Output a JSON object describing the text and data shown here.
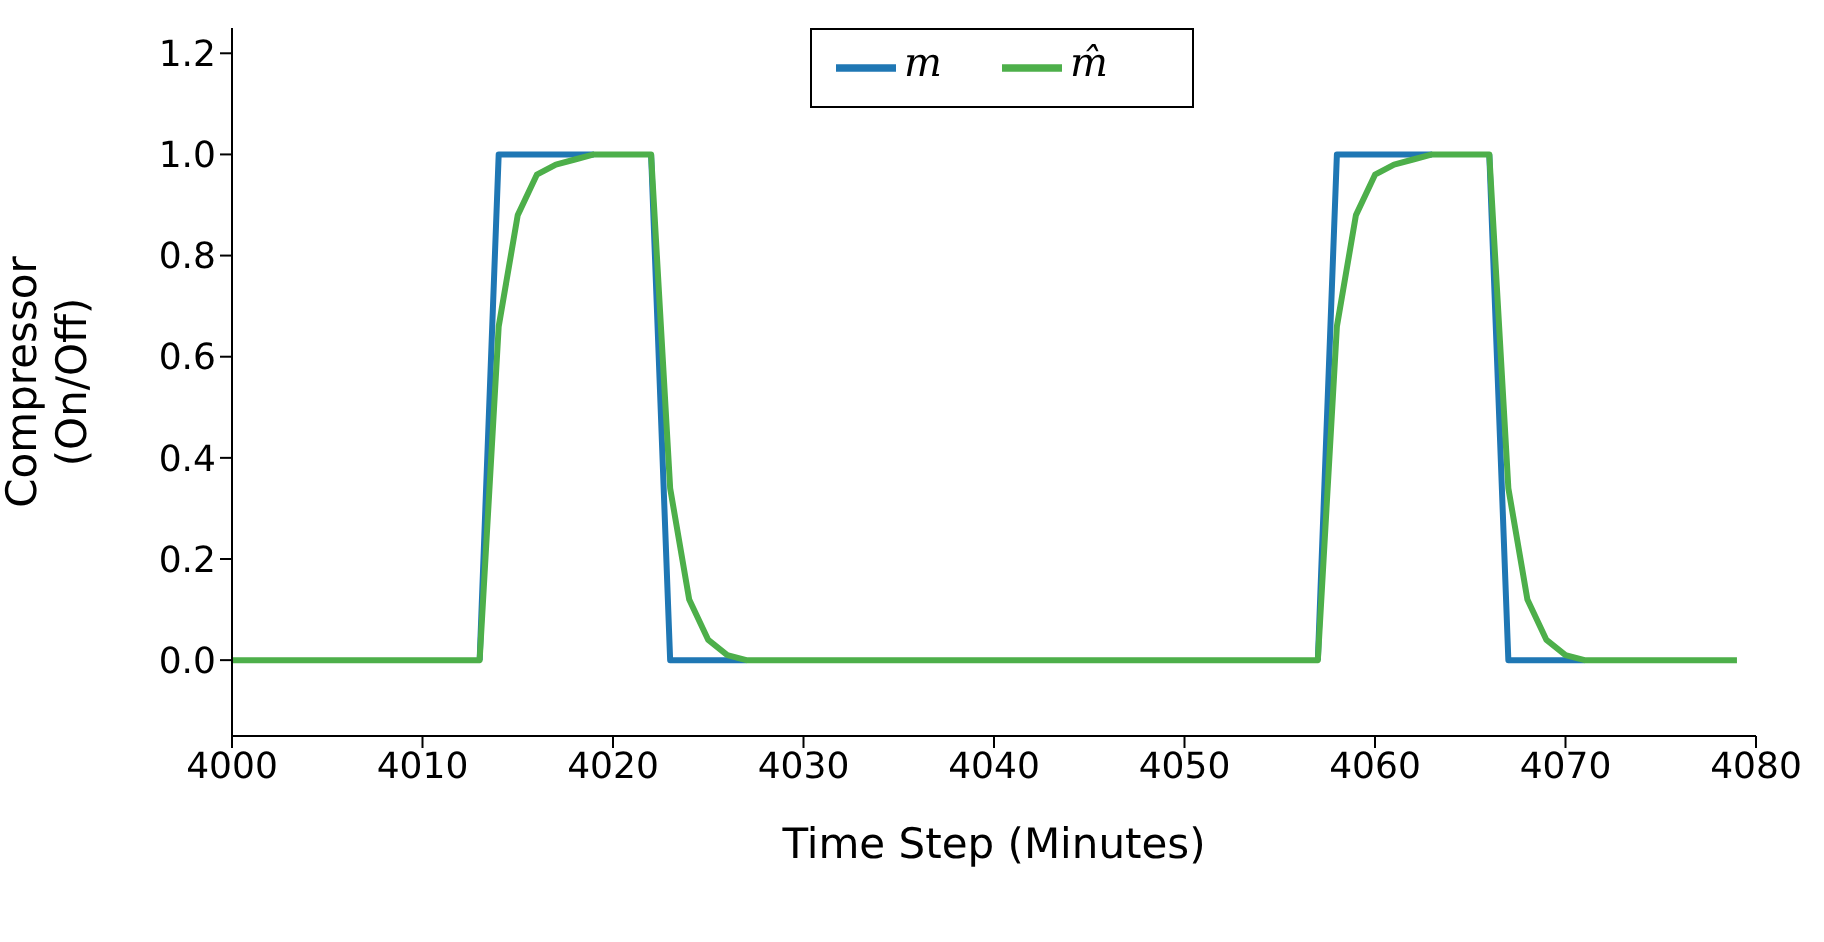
{
  "chart_data": {
    "type": "line",
    "xlabel": "Time Step (Minutes)",
    "ylabel": "Compressor\n(On/Off)",
    "x": [
      4000,
      4001,
      4002,
      4003,
      4004,
      4005,
      4006,
      4007,
      4008,
      4009,
      4010,
      4011,
      4012,
      4013,
      4014,
      4015,
      4016,
      4017,
      4018,
      4019,
      4020,
      4021,
      4022,
      4023,
      4024,
      4025,
      4026,
      4027,
      4028,
      4029,
      4030,
      4031,
      4032,
      4033,
      4034,
      4035,
      4036,
      4037,
      4038,
      4039,
      4040,
      4041,
      4042,
      4043,
      4044,
      4045,
      4046,
      4047,
      4048,
      4049,
      4050,
      4051,
      4052,
      4053,
      4054,
      4055,
      4056,
      4057,
      4058,
      4059,
      4060,
      4061,
      4062,
      4063,
      4064,
      4065,
      4066,
      4067,
      4068,
      4069,
      4070,
      4071,
      4072,
      4073,
      4074,
      4075,
      4076,
      4077,
      4078,
      4079
    ],
    "series": [
      {
        "name": "m",
        "color": "#1f77b4",
        "values": [
          null,
          null,
          null,
          null,
          null,
          null,
          null,
          null,
          null,
          null,
          null,
          null,
          null,
          0,
          1,
          1,
          1,
          1,
          1,
          1,
          null,
          null,
          1,
          0,
          0,
          0,
          0,
          0,
          null,
          null,
          null,
          null,
          null,
          null,
          null,
          null,
          null,
          null,
          null,
          null,
          null,
          null,
          null,
          null,
          null,
          null,
          null,
          null,
          null,
          null,
          null,
          null,
          null,
          null,
          null,
          null,
          null,
          0,
          1,
          1,
          1,
          1,
          1,
          1,
          null,
          null,
          1,
          0,
          0,
          0,
          0,
          0,
          null,
          null,
          null,
          null,
          null,
          null,
          null,
          null
        ]
      },
      {
        "name": "m̂",
        "color": "#4daf4a",
        "values": [
          0,
          0,
          0,
          0,
          0,
          0,
          0,
          0,
          0,
          0,
          0,
          0,
          0,
          0,
          0.66,
          0.88,
          0.96,
          0.98,
          0.99,
          1,
          1,
          1,
          1,
          0.34,
          0.12,
          0.04,
          0.01,
          0,
          0,
          0,
          0,
          0,
          0,
          0,
          0,
          0,
          0,
          0,
          0,
          0,
          0,
          0,
          0,
          0,
          0,
          0,
          0,
          0,
          0,
          0,
          0,
          0,
          0,
          0,
          0,
          0,
          0,
          0,
          0.66,
          0.88,
          0.96,
          0.98,
          0.99,
          1,
          1,
          1,
          1,
          0.34,
          0.12,
          0.04,
          0.01,
          0,
          0,
          0,
          0,
          0,
          0,
          0,
          0,
          0
        ]
      }
    ],
    "xlim": [
      4000,
      4080
    ],
    "xticks": [
      4000,
      4010,
      4020,
      4030,
      4040,
      4050,
      4060,
      4070,
      4080
    ],
    "ylim": [
      -0.15,
      1.25
    ],
    "yticks": [
      {
        "value": 0,
        "label": "0.0"
      },
      {
        "value": 0.2,
        "label": "0.2"
      },
      {
        "value": 0.4,
        "label": "0.4"
      },
      {
        "value": 0.6,
        "label": "0.6"
      },
      {
        "value": 0.8,
        "label": "0.8"
      },
      {
        "value": 1,
        "label": "1.0"
      },
      {
        "value": 1.2,
        "label": "1.2"
      }
    ],
    "legend": "top",
    "grid": false,
    "marker": "none",
    "line_style": "solid"
  }
}
